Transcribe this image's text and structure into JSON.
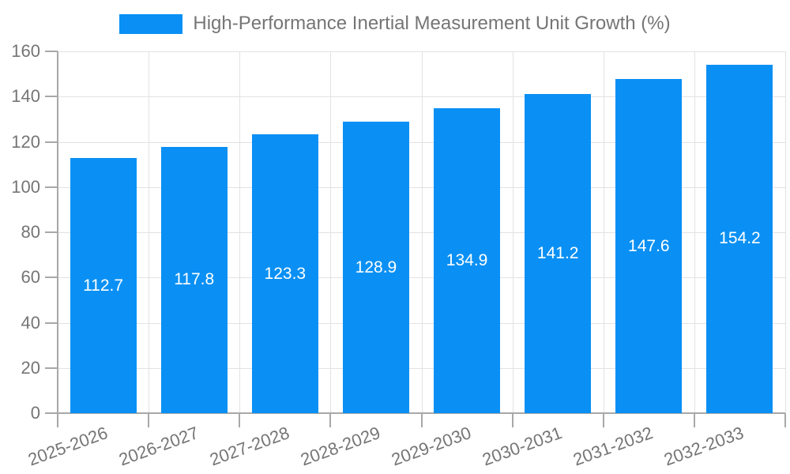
{
  "legend": {
    "label": "High-Performance Inertial Measurement Unit Growth (%)"
  },
  "colors": {
    "bar": "#0a90f4",
    "grid": "#e2e2e2",
    "axis": "#a8a8a8",
    "tick_text": "#757575",
    "bar_label_text": "#ffffff"
  },
  "chart_data": {
    "type": "bar",
    "title": "High-Performance Inertial Measurement Unit Growth (%)",
    "categories": [
      "2025-2026",
      "2026-2027",
      "2027-2028",
      "2028-2029",
      "2029-2030",
      "2030-2031",
      "2031-2032",
      "2032-2033"
    ],
    "values": [
      112.7,
      117.8,
      123.3,
      128.9,
      134.9,
      141.2,
      147.6,
      154.2
    ],
    "bar_labels": [
      "112.7",
      "117.8",
      "123.3",
      "128.9",
      "134.9",
      "141.2",
      "147.6",
      "154.2"
    ],
    "xlabel": "",
    "ylabel": "",
    "ylim": [
      0,
      160
    ],
    "yticks": [
      0,
      20,
      40,
      60,
      80,
      100,
      120,
      140,
      160
    ],
    "grid": true,
    "x_label_rotation_deg": -20,
    "legend_position": "top-center",
    "bar_label_position": "center-of-bar"
  }
}
